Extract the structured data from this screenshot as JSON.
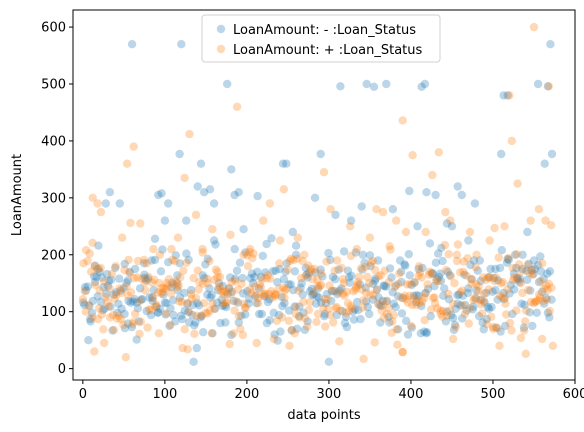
{
  "chart_data": {
    "type": "scatter",
    "title": "",
    "xlabel": "data points",
    "ylabel": "LoanAmount",
    "xlim": [
      -12,
      600
    ],
    "ylim": [
      -20,
      630
    ],
    "xticks": [
      0,
      100,
      200,
      300,
      400,
      500,
      600
    ],
    "yticks": [
      0,
      100,
      200,
      300,
      400,
      500,
      600
    ],
    "grid": false,
    "legend_position": "top-center",
    "series": [
      {
        "name": "LoanAmount: - :Loan_Status",
        "color": "#1f77b4",
        "alpha": 0.3,
        "outliers": [
          [
            8,
            110
          ],
          [
            15,
            181
          ],
          [
            19,
            216
          ],
          [
            23,
            160
          ],
          [
            28,
            290
          ],
          [
            33,
            310
          ],
          [
            45,
            290
          ],
          [
            51,
            184
          ],
          [
            55,
            155
          ],
          [
            60,
            570
          ],
          [
            66,
            116
          ],
          [
            75,
            165
          ],
          [
            84,
            190
          ],
          [
            88,
            228
          ],
          [
            92,
            305
          ],
          [
            96,
            308
          ],
          [
            100,
            260
          ],
          [
            104,
            290
          ],
          [
            110,
            120
          ],
          [
            115,
            150
          ],
          [
            118,
            377
          ],
          [
            120,
            570
          ],
          [
            126,
            260
          ],
          [
            129,
            191
          ],
          [
            135,
            12
          ],
          [
            140,
            320
          ],
          [
            144,
            360
          ],
          [
            148,
            310
          ],
          [
            155,
            315
          ],
          [
            160,
            290
          ],
          [
            170,
            110
          ],
          [
            176,
            500
          ],
          [
            181,
            350
          ],
          [
            185,
            305
          ],
          [
            190,
            310
          ],
          [
            196,
            245
          ],
          [
            213,
            303
          ],
          [
            224,
            219
          ],
          [
            240,
            175
          ],
          [
            244,
            360
          ],
          [
            248,
            360
          ],
          [
            256,
            240
          ],
          [
            260,
            200
          ],
          [
            268,
            130
          ],
          [
            274,
            160
          ],
          [
            283,
            300
          ],
          [
            290,
            377
          ],
          [
            300,
            12
          ],
          [
            308,
            270
          ],
          [
            314,
            496
          ],
          [
            327,
            260
          ],
          [
            340,
            285
          ],
          [
            346,
            500
          ],
          [
            355,
            495
          ],
          [
            360,
            190
          ],
          [
            370,
            500
          ],
          [
            378,
            280
          ],
          [
            388,
            170
          ],
          [
            398,
            312
          ],
          [
            408,
            250
          ],
          [
            413,
            495
          ],
          [
            417,
            500
          ],
          [
            419,
            310
          ],
          [
            430,
            305
          ],
          [
            437,
            212
          ],
          [
            444,
            255
          ],
          [
            450,
            250
          ],
          [
            457,
            320
          ],
          [
            462,
            305
          ],
          [
            470,
            225
          ],
          [
            478,
            290
          ],
          [
            484,
            190
          ],
          [
            494,
            160
          ],
          [
            503,
            175
          ],
          [
            510,
            377
          ],
          [
            513,
            480
          ],
          [
            518,
            480
          ],
          [
            527,
            200
          ],
          [
            536,
            175
          ],
          [
            542,
            240
          ],
          [
            548,
            75
          ],
          [
            555,
            500
          ],
          [
            563,
            360
          ],
          [
            567,
            496
          ],
          [
            570,
            570
          ],
          [
            572,
            377
          ]
        ]
      },
      {
        "name": "LoanAmount: + :Loan_Status",
        "color": "#ff7f0e",
        "alpha": 0.3,
        "outliers": [
          [
            4,
            208
          ],
          [
            12,
            300
          ],
          [
            14,
            30
          ],
          [
            18,
            290
          ],
          [
            22,
            275
          ],
          [
            26,
            45
          ],
          [
            40,
            180
          ],
          [
            48,
            230
          ],
          [
            54,
            360
          ],
          [
            58,
            256
          ],
          [
            62,
            390
          ],
          [
            70,
            255
          ],
          [
            78,
            185
          ],
          [
            86,
            210
          ],
          [
            94,
            200
          ],
          [
            102,
            150
          ],
          [
            108,
            210
          ],
          [
            116,
            230
          ],
          [
            124,
            335
          ],
          [
            130,
            412
          ],
          [
            138,
            270
          ],
          [
            146,
            210
          ],
          [
            152,
            150
          ],
          [
            158,
            245
          ],
          [
            164,
            160
          ],
          [
            172,
            130
          ],
          [
            180,
            235
          ],
          [
            188,
            460
          ],
          [
            196,
            200
          ],
          [
            204,
            210
          ],
          [
            212,
            45
          ],
          [
            220,
            260
          ],
          [
            228,
            290
          ],
          [
            236,
            130
          ],
          [
            245,
            315
          ],
          [
            252,
            40
          ],
          [
            262,
            230
          ],
          [
            270,
            200
          ],
          [
            278,
            175
          ],
          [
            286,
            145
          ],
          [
            294,
            345
          ],
          [
            302,
            280
          ],
          [
            310,
            190
          ],
          [
            318,
            150
          ],
          [
            326,
            250
          ],
          [
            334,
            210
          ],
          [
            342,
            120
          ],
          [
            350,
            230
          ],
          [
            358,
            280
          ],
          [
            366,
            275
          ],
          [
            374,
            215
          ],
          [
            382,
            260
          ],
          [
            390,
            436
          ],
          [
            394,
            240
          ],
          [
            402,
            375
          ],
          [
            410,
            180
          ],
          [
            418,
            240
          ],
          [
            426,
            340
          ],
          [
            434,
            380
          ],
          [
            442,
            275
          ],
          [
            448,
            260
          ],
          [
            456,
            200
          ],
          [
            464,
            170
          ],
          [
            472,
            240
          ],
          [
            480,
            200
          ],
          [
            488,
            160
          ],
          [
            496,
            225
          ],
          [
            502,
            247
          ],
          [
            508,
            40
          ],
          [
            514,
            250
          ],
          [
            520,
            480
          ],
          [
            523,
            400
          ],
          [
            530,
            325
          ],
          [
            534,
            150
          ],
          [
            540,
            26
          ],
          [
            546,
            260
          ],
          [
            550,
            600
          ],
          [
            556,
            280
          ],
          [
            560,
            185
          ],
          [
            564,
            260
          ],
          [
            568,
            496
          ],
          [
            571,
            252
          ],
          [
            573,
            40
          ]
        ]
      }
    ]
  }
}
